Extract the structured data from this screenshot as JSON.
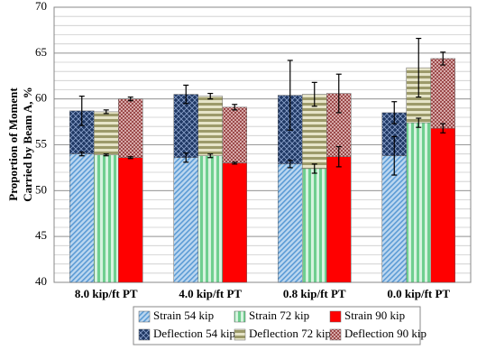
{
  "chart_data": {
    "type": "overlay_bar",
    "ylabel": [
      "Proportion of Moment",
      "Carried by Beam A, %"
    ],
    "categories": [
      "8.0 kip/ft PT",
      "4.0 kip/ft PT",
      "0.8 kip/ft PT",
      "0.0 kip/ft PT"
    ],
    "ylim": [
      40,
      70
    ],
    "yticks": [
      40,
      45,
      50,
      55,
      60,
      65,
      70
    ],
    "grid": true,
    "minor_grid_step": 1,
    "legend": "bottom",
    "series": [
      {
        "name": "Strain 54 kip",
        "color": "#5b9bd5",
        "pattern": "dots",
        "slot": 0,
        "layer": "front",
        "values": [
          54.0,
          53.6,
          52.9,
          53.8
        ],
        "errors": [
          0.2,
          0.5,
          0.4,
          2.1
        ]
      },
      {
        "name": "Strain 72 kip",
        "color": "#6fcf8f",
        "pattern": "vstripes",
        "slot": 1,
        "layer": "front",
        "values": [
          53.9,
          53.8,
          52.4,
          57.4
        ],
        "errors": [
          0.1,
          0.2,
          0.5,
          0.5
        ]
      },
      {
        "name": "Strain 90 kip",
        "color": "#ff0000",
        "pattern": "solid",
        "slot": 2,
        "layer": "front",
        "values": [
          53.6,
          53.0,
          53.7,
          56.8
        ],
        "errors": [
          0.1,
          0.1,
          1.1,
          0.5
        ]
      },
      {
        "name": "Deflection 54 kip",
        "color": "#1f3864",
        "pattern": "diamonds",
        "slot": 0,
        "layer": "back",
        "values": [
          58.7,
          60.5,
          60.4,
          58.5
        ],
        "errors": [
          1.6,
          1.0,
          3.8,
          1.2
        ]
      },
      {
        "name": "Deflection 72 kip",
        "color": "#9c9a6a",
        "pattern": "hstripes",
        "slot": 1,
        "layer": "back",
        "values": [
          58.6,
          60.3,
          60.5,
          63.4
        ],
        "errors": [
          0.2,
          0.3,
          1.3,
          3.2
        ]
      },
      {
        "name": "Deflection 90 kip",
        "color": "#9b4a4a",
        "pattern": "checks",
        "slot": 2,
        "layer": "back",
        "values": [
          60.0,
          59.1,
          60.6,
          64.4
        ],
        "errors": [
          0.2,
          0.3,
          2.1,
          0.7
        ]
      }
    ]
  }
}
